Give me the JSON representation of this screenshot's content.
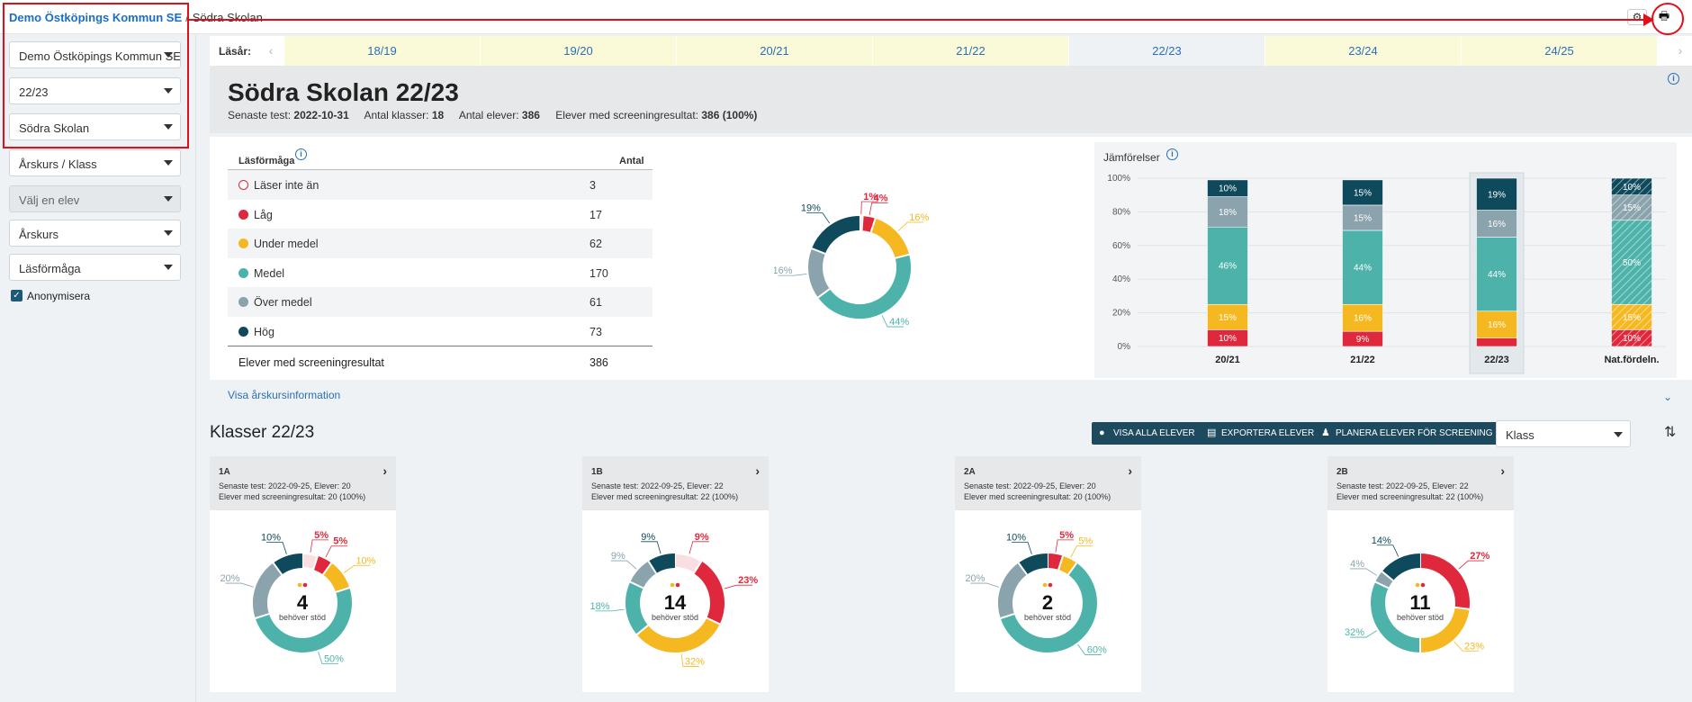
{
  "breadcrumb": {
    "org": "Demo Östköpings Kommun SE",
    "separator": "/",
    "current": "Södra Skolan"
  },
  "sidebar": {
    "selects": [
      "Demo Östköpings Kommun SE",
      "22/23",
      "Södra Skolan",
      "Årskurs / Klass",
      "Välj en elev",
      "Årskurs",
      "Läsförmåga"
    ],
    "checkbox_label": "Anonymisera"
  },
  "years": {
    "label": "Läsår:",
    "items": [
      "18/19",
      "19/20",
      "20/21",
      "21/22",
      "22/23",
      "23/24",
      "24/25"
    ],
    "active": "22/23"
  },
  "school": {
    "title": "Södra Skolan 22/23",
    "last_test_label": "Senaste test:",
    "last_test": "2022-10-31",
    "classes_label": "Antal klasser:",
    "classes": "18",
    "students_label": "Antal elever:",
    "students": "386",
    "screened_label": "Elever med screeningresultat:",
    "screened": "386 (100%)"
  },
  "table": {
    "header_label": "Läsförmåga",
    "header_count": "Antal",
    "rows": [
      {
        "label": "Läser inte än",
        "value": "3",
        "color": "#e0283c",
        "hollow": true
      },
      {
        "label": "Låg",
        "value": "17",
        "color": "#e0283c"
      },
      {
        "label": "Under medel",
        "value": "62",
        "color": "#f5b820"
      },
      {
        "label": "Medel",
        "value": "170",
        "color": "#4db3aa"
      },
      {
        "label": "Över medel",
        "value": "61",
        "color": "#8aa3ac"
      },
      {
        "label": "Hög",
        "value": "73",
        "color": "#0e4a5c"
      }
    ],
    "footer_label": "Elever med screeningresultat",
    "footer_value": "386"
  },
  "colors": {
    "hollow": "#e0283c",
    "low": "#e0283c",
    "under": "#f5b820",
    "medium": "#4db3aa",
    "over": "#8aa3ac",
    "high": "#0e4a5c",
    "accent": "#2a6fb8"
  },
  "chart_data": [
    {
      "type": "pie",
      "categories": [
        "Läser inte än",
        "Låg",
        "Under medel",
        "Medel",
        "Över medel",
        "Hög"
      ],
      "values": [
        1,
        4,
        16,
        44,
        16,
        19
      ],
      "labels": [
        "1%",
        "4%",
        "16%",
        "44%",
        "16%",
        "19%"
      ]
    },
    {
      "type": "bar",
      "title": "Jämförelser",
      "categories": [
        "20/21",
        "21/22",
        "22/23",
        "Nat.fördeln."
      ],
      "ylim": [
        0,
        100
      ],
      "yticks": [
        "0%",
        "20%",
        "40%",
        "60%",
        "80%",
        "100%"
      ],
      "series": [
        {
          "values": [
            10,
            9,
            5,
            10
          ],
          "labels": [
            "10%",
            "9%",
            "",
            "10%"
          ]
        },
        {
          "values": [
            15,
            16,
            16,
            15
          ],
          "labels": [
            "15%",
            "16%",
            "16%",
            "15%"
          ]
        },
        {
          "values": [
            46,
            44,
            44,
            50
          ],
          "labels": [
            "46%",
            "44%",
            "44%",
            "50%"
          ]
        },
        {
          "values": [
            18,
            15,
            16,
            15
          ],
          "labels": [
            "18%",
            "15%",
            "16%",
            "15%"
          ]
        },
        {
          "values": [
            10,
            15,
            19,
            10
          ],
          "labels": [
            "10%",
            "15%",
            "19%",
            "10%"
          ]
        }
      ]
    },
    {
      "type": "pie",
      "class": "1A",
      "center": "4",
      "values": [
        5,
        5,
        10,
        50,
        20,
        10
      ],
      "labels": [
        "5%",
        "5%",
        "10%",
        "50%",
        "20%",
        "10%"
      ]
    },
    {
      "type": "pie",
      "class": "1B",
      "center": "14",
      "values": [
        9,
        23,
        32,
        18,
        9,
        9
      ],
      "labels": [
        "9%",
        "23%",
        "32%",
        "18%",
        "9%",
        "9%"
      ]
    },
    {
      "type": "pie",
      "class": "2A",
      "center": "2",
      "values": [
        0,
        5,
        5,
        60,
        20,
        10
      ],
      "labels": [
        "",
        "5%",
        "5%",
        "60%",
        "20%",
        "10%"
      ]
    },
    {
      "type": "pie",
      "class": "2B",
      "center": "11",
      "values": [
        0,
        27,
        23,
        32,
        4,
        14
      ],
      "labels": [
        "",
        "27%",
        "23%",
        "32%",
        "4%",
        "14%"
      ]
    }
  ],
  "show_grade_info": "Visa årskursinformation",
  "classes_section": {
    "title": "Klasser 22/23",
    "buttons": [
      "VISA ALLA ELEVER",
      "EXPORTERA ELEVER",
      "PLANERA ELEVER FÖR SCREENING"
    ],
    "sort_select": "Klass",
    "needs_support": "behöver stöd",
    "cards": [
      {
        "name": "1A",
        "line1": "Senaste test: 2022-09-25, Elever: 20",
        "line2": "Elever med screeningresultat: 20 (100%)"
      },
      {
        "name": "1B",
        "line1": "Senaste test: 2022-09-25, Elever: 22",
        "line2": "Elever med screeningresultat: 22 (100%)"
      },
      {
        "name": "2A",
        "line1": "Senaste test: 2022-09-25, Elever: 20",
        "line2": "Elever med screeningresultat: 20 (100%)"
      },
      {
        "name": "2B",
        "line1": "Senaste test: 2022-09-25, Elever: 22",
        "line2": "Elever med screeningresultat: 22 (100%)"
      }
    ]
  }
}
